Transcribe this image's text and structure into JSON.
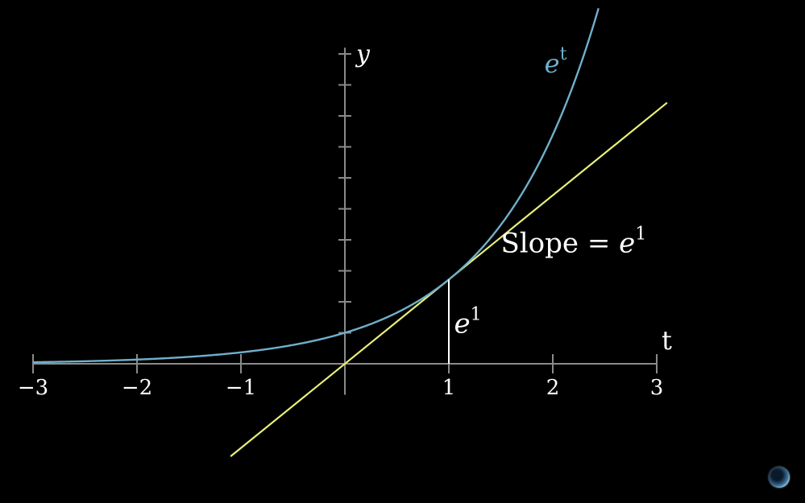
{
  "chart_data": {
    "type": "line",
    "xlabel": "t",
    "ylabel": "y",
    "xlim": [
      -3,
      3
    ],
    "x_ticks": [
      -3,
      -2,
      -1,
      1,
      2,
      3
    ],
    "x_tick_labels": [
      "−3",
      "−2",
      "−1",
      "1",
      "2",
      "3"
    ],
    "y_tick_count_above": 10,
    "grid": false,
    "series": [
      {
        "name": "e^t",
        "label_base": "e",
        "label_sup": "t",
        "function": "exp",
        "color": "#6fb0cc"
      },
      {
        "tangent_at_x": 1,
        "slope_value": "e^1",
        "color": "#e8ee7a"
      }
    ],
    "annotations": {
      "slope_text": "Slope = ",
      "slope_base": "e",
      "slope_sup": "1",
      "height_base": "e",
      "height_sup": "1"
    },
    "colors": {
      "background": "#000000",
      "axis": "#8a8a8a",
      "curve": "#6fb0cc",
      "tangent": "#e8ee7a",
      "vertical_segment": "#ffffff",
      "text": "#ffffff"
    }
  }
}
